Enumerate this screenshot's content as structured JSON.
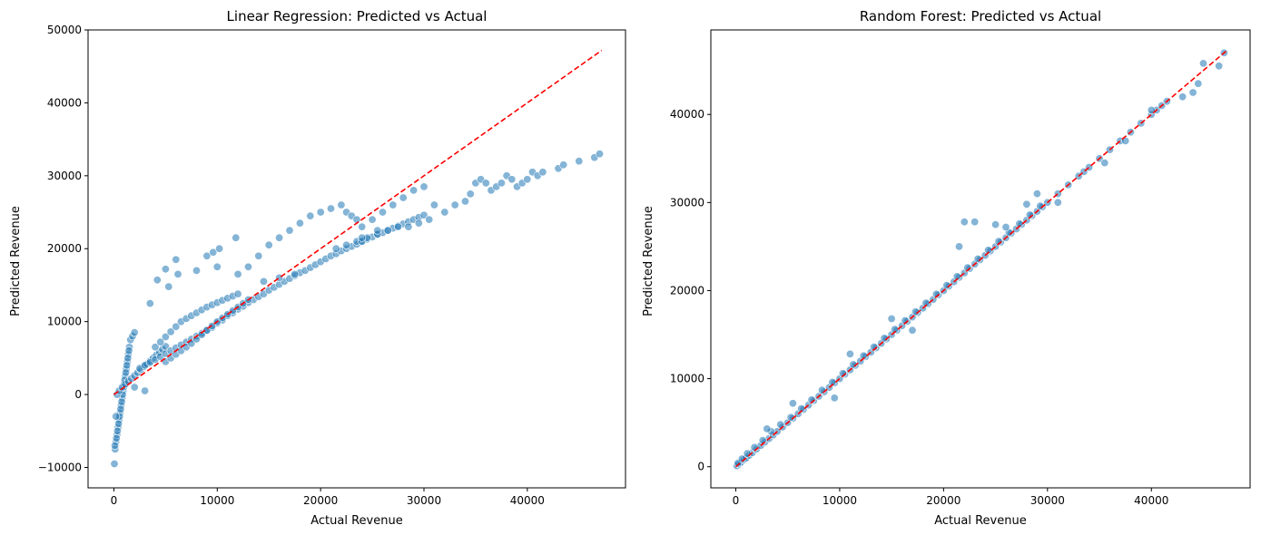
{
  "colors": {
    "point": "#1f77b4",
    "point_edge": "#ffffff",
    "reference_line": "#ff0000",
    "axes": "#000000"
  },
  "chart_data": [
    {
      "type": "scatter",
      "title": "Linear Regression: Predicted vs Actual",
      "xlabel": "Actual Revenue",
      "ylabel": "Predicted Revenue",
      "xlim": [
        -2500,
        49500
      ],
      "ylim": [
        -12800,
        50000
      ],
      "xticks": [
        0,
        10000,
        20000,
        30000,
        40000
      ],
      "yticks": [
        -10000,
        0,
        10000,
        20000,
        30000,
        40000,
        50000
      ],
      "grid": false,
      "reference_line": {
        "style": "dashed",
        "x": [
          0,
          47200
        ],
        "y": [
          0,
          47200
        ]
      },
      "series": [
        {
          "x": [
            50,
            120,
            200,
            300,
            400,
            500,
            600,
            700,
            800,
            900,
            1000,
            1100,
            1200,
            1300,
            1400,
            1500,
            1600,
            1800,
            2000,
            100,
            250,
            350,
            450,
            550,
            650,
            750,
            850,
            950,
            1050,
            1150,
            1250,
            1350,
            1450,
            300,
            500,
            800,
            1100,
            1400,
            1700,
            2000,
            2300,
            2600,
            2900,
            3200,
            3500,
            3800,
            4100,
            4400,
            4700,
            5000,
            2500,
            3000,
            3500,
            4000,
            4500,
            5000,
            5500,
            6000,
            6500,
            7000,
            7500,
            8000,
            8500,
            9000,
            9500,
            10000,
            10500,
            11000,
            11500,
            12000,
            12500,
            13000,
            13500,
            14000,
            14500,
            15000,
            15500,
            16000,
            16500,
            17000,
            17500,
            18000,
            18500,
            19000,
            19500,
            20000,
            20500,
            21000,
            21500,
            22000,
            22500,
            23000,
            23500,
            24000,
            24500,
            25000,
            25500,
            26000,
            26500,
            27000,
            27500,
            28000,
            28500,
            29000,
            29500,
            30000,
            4000,
            4500,
            5000,
            5500,
            6000,
            6500,
            7000,
            7500,
            8000,
            8500,
            9000,
            9500,
            10000,
            10500,
            11000,
            11500,
            12000,
            5000,
            5500,
            6000,
            6500,
            7000,
            7500,
            8000,
            8500,
            9000,
            9500,
            10000,
            10500,
            11000,
            11500,
            12000,
            12500,
            13000,
            3500,
            4200,
            5000,
            5300,
            6000,
            9000,
            9600,
            10200,
            11800,
            12000,
            13000,
            14000,
            15000,
            16000,
            17000,
            18000,
            19000,
            20000,
            21000,
            22000,
            22500,
            23000,
            23500,
            24000,
            25000,
            26000,
            27000,
            28000,
            29000,
            30000,
            31000,
            21500,
            22500,
            23500,
            24000,
            24500,
            25500,
            26500,
            27500,
            28500,
            29500,
            30500,
            32000,
            33000,
            34000,
            34500,
            35000,
            35500,
            36000,
            36500,
            37000,
            37500,
            38000,
            38500,
            39000,
            39500,
            40000,
            40500,
            41000,
            41500,
            43000,
            43500,
            45000,
            46500,
            47000,
            10000,
            8000,
            6200,
            14500,
            16000,
            17500,
            24000,
            25500,
            200,
            2000,
            3000
          ],
          "y": [
            -9500,
            -7500,
            -6500,
            -5500,
            -4500,
            -3500,
            -2500,
            -1500,
            -500,
            500,
            1500,
            2500,
            3500,
            4500,
            5500,
            6500,
            7500,
            8000,
            8500,
            -7000,
            -6000,
            -5000,
            -4000,
            -3000,
            -2000,
            -1000,
            0,
            1000,
            2000,
            3000,
            4000,
            5000,
            6000,
            0,
            500,
            1000,
            1400,
            1800,
            2200,
            2600,
            3000,
            3400,
            3800,
            4200,
            4600,
            5000,
            5400,
            5800,
            6200,
            6600,
            3600,
            4000,
            4400,
            4800,
            5200,
            5600,
            6000,
            6400,
            6800,
            7200,
            7600,
            8000,
            8400,
            8800,
            9200,
            9800,
            10200,
            10800,
            11200,
            11700,
            12100,
            12600,
            13000,
            13400,
            13800,
            14300,
            14700,
            15100,
            15500,
            15900,
            16300,
            16700,
            17000,
            17400,
            17800,
            18200,
            18600,
            19000,
            19300,
            19700,
            20000,
            20300,
            20600,
            21000,
            21300,
            21600,
            21900,
            22200,
            22500,
            22800,
            23100,
            23400,
            23700,
            24000,
            24300,
            24600,
            6500,
            7200,
            7900,
            8600,
            9300,
            10000,
            10400,
            10800,
            11200,
            11600,
            12000,
            12300,
            12600,
            12900,
            13200,
            13500,
            13800,
            4500,
            5000,
            5500,
            6000,
            6500,
            7000,
            7600,
            8200,
            8800,
            9400,
            10000,
            10500,
            11000,
            11500,
            12000,
            12500,
            13000,
            12500,
            15700,
            17200,
            14800,
            18500,
            19000,
            19500,
            20000,
            21500,
            16500,
            17500,
            19000,
            20500,
            21500,
            22500,
            23500,
            24500,
            25000,
            25500,
            26000,
            25000,
            24500,
            24000,
            23000,
            24000,
            25000,
            26000,
            27000,
            28000,
            28500,
            26000,
            20000,
            20500,
            21000,
            21000,
            21500,
            22000,
            22500,
            23000,
            23000,
            23500,
            24000,
            25000,
            26000,
            26500,
            27500,
            29000,
            29500,
            29000,
            28000,
            28500,
            29000,
            30000,
            29500,
            28500,
            29000,
            29500,
            30500,
            30000,
            30500,
            31000,
            31500,
            32000,
            32500,
            33000,
            17500,
            17000,
            16500,
            15500,
            16000,
            16500,
            21500,
            22500,
            -3000,
            1000,
            500
          ]
        }
      ]
    },
    {
      "type": "scatter",
      "title": "Random Forest: Predicted vs Actual",
      "xlabel": "Actual Revenue",
      "ylabel": "Predicted Revenue",
      "xlim": [
        -2400,
        49500
      ],
      "ylim": [
        -2400,
        49600
      ],
      "xticks": [
        0,
        10000,
        20000,
        30000,
        40000
      ],
      "yticks": [
        0,
        10000,
        20000,
        30000,
        40000
      ],
      "grid": false,
      "reference_line": {
        "style": "dashed",
        "x": [
          0,
          47200
        ],
        "y": [
          0,
          47200
        ]
      },
      "series": [
        {
          "x": [
            100,
            300,
            500,
            800,
            1000,
            1300,
            1600,
            2000,
            2400,
            2800,
            3200,
            3600,
            4000,
            4500,
            5000,
            5500,
            6000,
            6500,
            7000,
            7500,
            8000,
            8500,
            9000,
            9500,
            10000,
            10500,
            11000,
            11500,
            12000,
            12500,
            13000,
            13500,
            14000,
            14500,
            15000,
            15500,
            16000,
            16500,
            17000,
            17500,
            18000,
            18500,
            19000,
            19500,
            20000,
            20500,
            21000,
            21500,
            22000,
            22500,
            23000,
            23500,
            24000,
            24500,
            25000,
            25500,
            26000,
            26500,
            27000,
            27500,
            28000,
            28500,
            29000,
            29500,
            30000,
            31000,
            32000,
            33000,
            34000,
            35000,
            36000,
            37000,
            38000,
            39000,
            40000,
            40500,
            41000,
            41500,
            43000,
            44500,
            45000,
            46500,
            47000,
            200,
            600,
            1100,
            1800,
            2600,
            3400,
            4300,
            5300,
            6300,
            7300,
            8300,
            9300,
            10300,
            11300,
            12300,
            13300,
            14300,
            15300,
            16300,
            17300,
            18300,
            19300,
            20300,
            21300,
            22300,
            23300,
            24300,
            25300,
            26300,
            27300,
            28300,
            29300,
            21500,
            22000,
            23000,
            25000,
            26000,
            28000,
            29000,
            31000,
            33500,
            35500,
            37500,
            40000,
            44000,
            3000,
            5500,
            9500,
            11000,
            15000,
            17000
          ],
          "y": [
            100,
            300,
            500,
            800,
            1000,
            1300,
            1600,
            2000,
            2400,
            2800,
            3200,
            3600,
            4000,
            4500,
            5000,
            5500,
            6000,
            6500,
            7000,
            7500,
            8000,
            8500,
            9000,
            9500,
            10000,
            10500,
            11000,
            11500,
            12000,
            12500,
            13000,
            13500,
            14000,
            14500,
            15000,
            15500,
            16000,
            16500,
            17000,
            17500,
            18000,
            18500,
            19000,
            19500,
            20000,
            20500,
            21000,
            21500,
            22000,
            22500,
            23000,
            23500,
            24000,
            24500,
            25000,
            25500,
            26000,
            26500,
            27000,
            27500,
            28000,
            28500,
            29000,
            29500,
            30000,
            31000,
            32000,
            33000,
            34000,
            35000,
            36000,
            37000,
            38000,
            39000,
            40000,
            40500,
            41000,
            41500,
            42000,
            43500,
            45800,
            45500,
            47000,
            400,
            900,
            1500,
            2200,
            3000,
            4000,
            4800,
            5600,
            6600,
            7600,
            8700,
            9600,
            10600,
            11600,
            12600,
            13600,
            14600,
            15600,
            16600,
            17600,
            18600,
            19600,
            20600,
            21600,
            22600,
            23600,
            24600,
            25600,
            26600,
            27600,
            28600,
            29600,
            25000,
            27800,
            27800,
            27500,
            27200,
            29800,
            31000,
            30000,
            33500,
            34500,
            37000,
            40500,
            42500,
            4300,
            7200,
            7800,
            12800,
            16800,
            15500
          ]
        }
      ]
    }
  ]
}
